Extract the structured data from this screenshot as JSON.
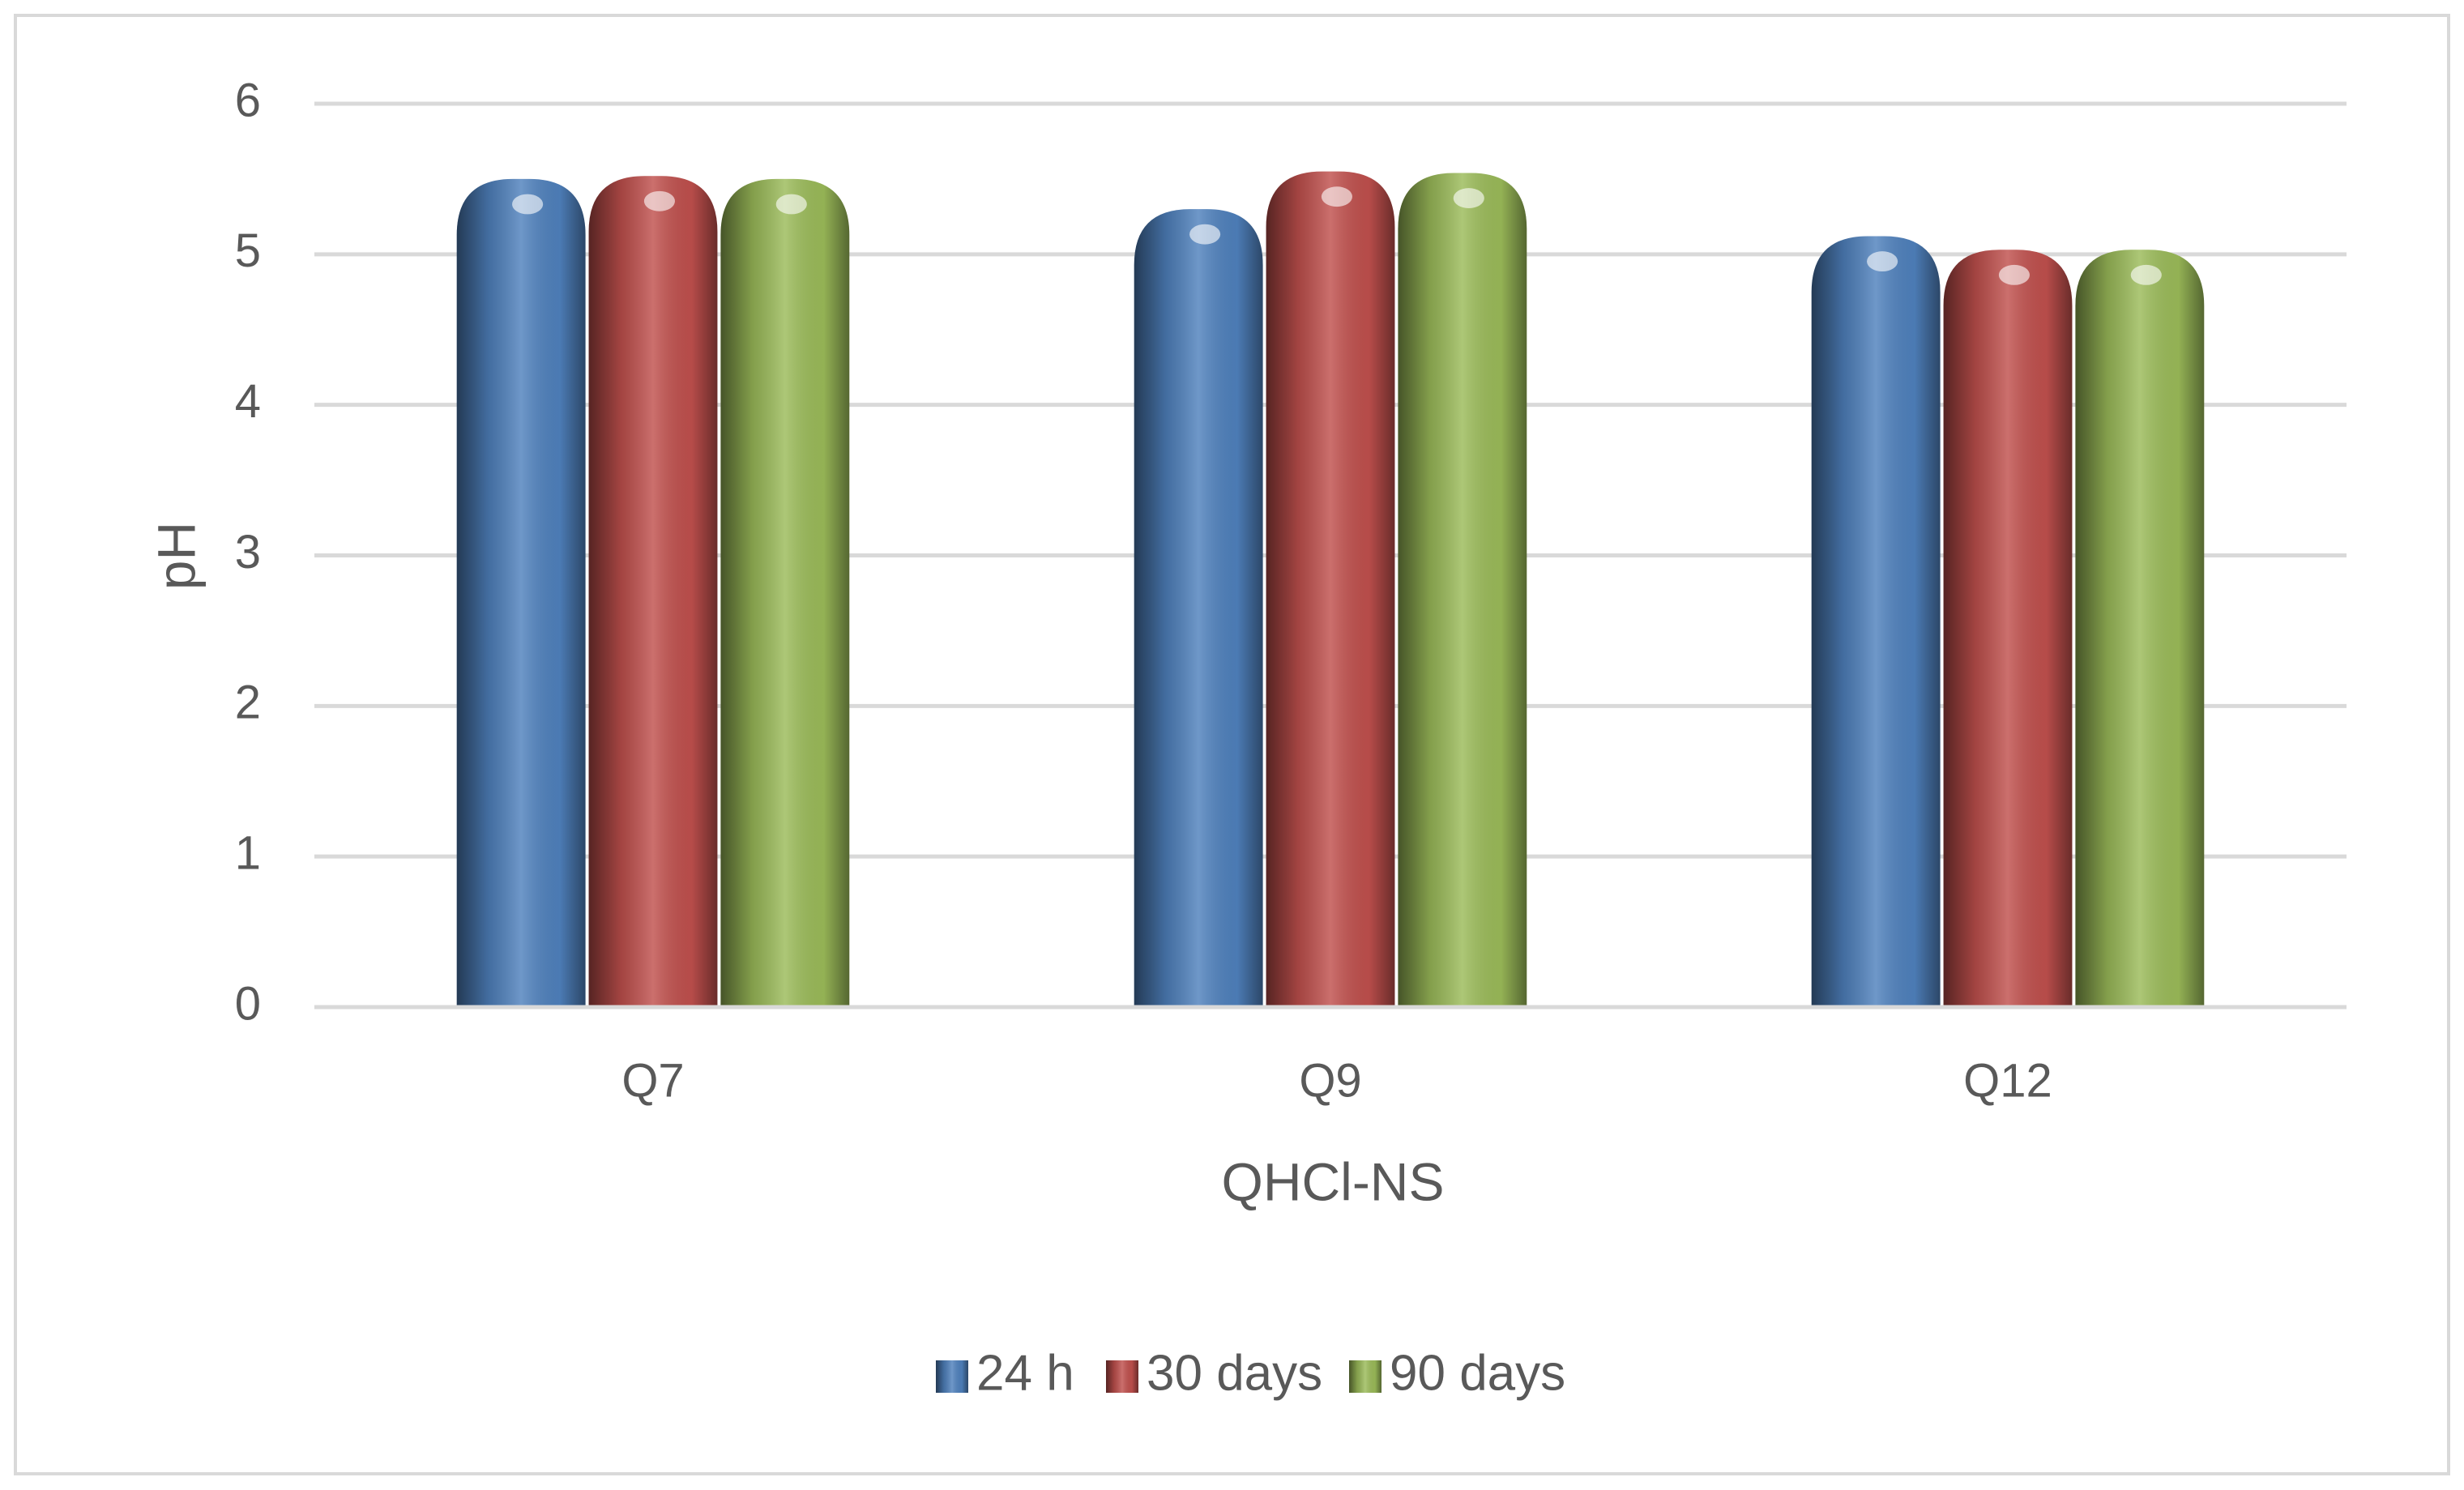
{
  "chart_data": {
    "type": "bar",
    "x_label": "QHCl-NS",
    "y_label": "pH",
    "categories": [
      "Q7",
      "Q9",
      "Q12"
    ],
    "series": [
      {
        "name": "24 h",
        "color": "#4f81bd",
        "values": [
          5.5,
          5.3,
          5.12
        ]
      },
      {
        "name": "30 days",
        "color": "#c0504d",
        "values": [
          5.52,
          5.55,
          5.03
        ]
      },
      {
        "name": "90 days",
        "color": "#9bbb59",
        "values": [
          5.5,
          5.54,
          5.03
        ]
      }
    ],
    "ylim": [
      0,
      6
    ],
    "yticks": [
      0,
      1,
      2,
      3,
      4,
      5,
      6
    ],
    "grid": true,
    "legend": "bottom"
  }
}
